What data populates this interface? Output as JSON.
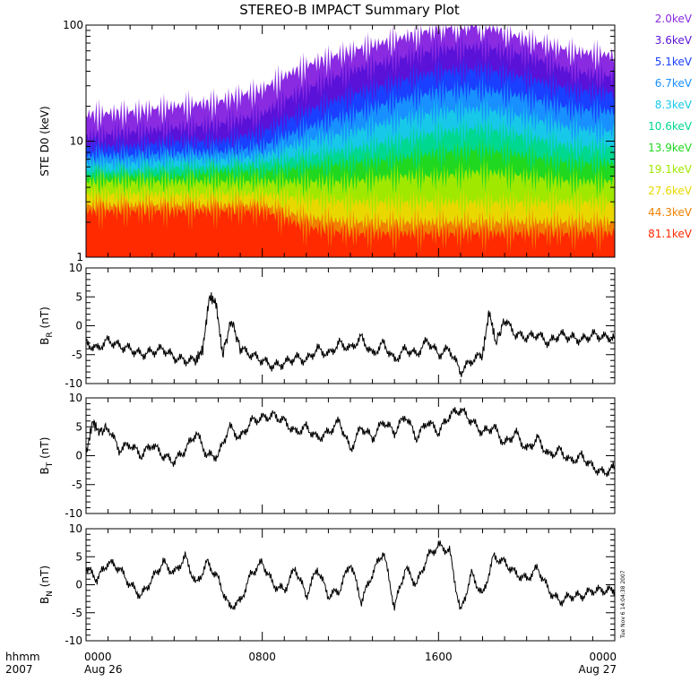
{
  "figure_title": "STEREO-B IMPACT Summary Plot",
  "legend": [
    {
      "label": "2.0keV",
      "color": "#8a2be2"
    },
    {
      "label": "3.6keV",
      "color": "#5a12d8"
    },
    {
      "label": "5.1keV",
      "color": "#1a3fff"
    },
    {
      "label": "6.7keV",
      "color": "#1890ff"
    },
    {
      "label": "8.3keV",
      "color": "#18c8e8"
    },
    {
      "label": "10.6keV",
      "color": "#00d890"
    },
    {
      "label": "13.9keV",
      "color": "#20d820"
    },
    {
      "label": "19.1keV",
      "color": "#a0e800"
    },
    {
      "label": "27.6keV",
      "color": "#e8d800"
    },
    {
      "label": "44.3keV",
      "color": "#f08000"
    },
    {
      "label": "81.1keV",
      "color": "#ff2a00"
    }
  ],
  "x_axis": {
    "corner_labels": [
      "hhmm",
      "2007"
    ],
    "ticks": [
      {
        "hhmm": "0000",
        "date": "Aug 26"
      },
      {
        "hhmm": "0800",
        "date": ""
      },
      {
        "hhmm": "1600",
        "date": ""
      },
      {
        "hhmm": "0000",
        "date": "Aug 27"
      }
    ]
  },
  "timestamp": "Tue Nov  6 14:04:38 2007",
  "chart_data": [
    {
      "type": "area",
      "panel": "STE D0 energy channels",
      "ylabel": "STE D0 (keV)",
      "scale": "log",
      "ylim": [
        1,
        100
      ],
      "yticks": [
        "1",
        "10",
        "100"
      ],
      "x_units": "hours since 0000 Aug 26",
      "x": [
        0,
        2,
        4,
        6,
        8,
        10,
        12,
        14,
        16,
        18,
        20,
        22,
        24
      ],
      "series": [
        {
          "name": "2.0keV",
          "values": [
            17,
            18,
            20,
            22,
            28,
            45,
            60,
            75,
            95,
            100,
            75,
            60,
            55
          ]
        },
        {
          "name": "3.6keV",
          "values": [
            11,
            12,
            13,
            14,
            17,
            28,
            40,
            50,
            62,
            65,
            55,
            40,
            36
          ]
        },
        {
          "name": "5.1keV",
          "values": [
            9,
            9,
            10,
            10,
            12,
            18,
            25,
            32,
            40,
            42,
            35,
            28,
            26
          ]
        },
        {
          "name": "6.7keV",
          "values": [
            7.5,
            7.5,
            8,
            8,
            9,
            13,
            17,
            22,
            27,
            28,
            24,
            19,
            18
          ]
        },
        {
          "name": "8.3keV",
          "values": [
            6.5,
            6.5,
            7,
            7,
            7.5,
            10,
            12,
            15,
            18,
            19,
            16,
            13,
            12
          ]
        },
        {
          "name": "10.6keV",
          "values": [
            5.5,
            5.5,
            6,
            6,
            6.5,
            7.5,
            8.5,
            10,
            12,
            13,
            11,
            9,
            9
          ]
        },
        {
          "name": "13.9keV",
          "values": [
            5,
            5,
            5,
            5.5,
            5.5,
            6,
            6.5,
            7,
            8,
            8.5,
            7.5,
            6.5,
            6.5
          ]
        },
        {
          "name": "19.1keV",
          "values": [
            4.5,
            4.5,
            4.5,
            4.5,
            4.5,
            4.5,
            4.5,
            5,
            5,
            5.5,
            5,
            4.5,
            4.5
          ]
        },
        {
          "name": "27.6keV",
          "values": [
            3.5,
            3.5,
            3.5,
            3.5,
            3.5,
            3.2,
            3,
            3,
            3,
            3,
            3,
            3,
            3
          ]
        },
        {
          "name": "44.3keV",
          "values": [
            2.8,
            2.8,
            2.8,
            2.8,
            2.8,
            2.2,
            2,
            2,
            2,
            2,
            2,
            2,
            2
          ]
        },
        {
          "name": "81.1keV",
          "values": [
            2.5,
            2.5,
            2.5,
            2.5,
            2.5,
            1.8,
            1.6,
            1.6,
            1.6,
            1.6,
            1.6,
            1.6,
            1.6
          ]
        }
      ]
    },
    {
      "type": "line",
      "panel": "BR",
      "ylabel_main": "B",
      "ylabel_sub": "R",
      "ylabel_unit": "(nT)",
      "ylim": [
        -10,
        10
      ],
      "yticks": [
        "-10",
        "-5",
        "0",
        "5",
        "10"
      ],
      "x_units": "hours since 0000 Aug 26",
      "x": [
        0,
        0.5,
        1,
        1.5,
        2,
        2.5,
        3,
        3.5,
        4,
        4.5,
        5,
        5.3,
        5.6,
        5.9,
        6.2,
        6.6,
        7,
        7.5,
        8,
        8.5,
        9,
        9.5,
        10,
        10.5,
        11,
        11.5,
        12,
        12.5,
        13,
        13.5,
        14,
        14.5,
        15,
        15.5,
        16,
        16.5,
        17,
        17.5,
        18,
        18.3,
        18.6,
        19,
        19.5,
        20,
        20.5,
        21,
        21.5,
        22,
        22.5,
        23,
        23.5,
        24
      ],
      "values": [
        -3,
        -4,
        -2.5,
        -3.5,
        -4,
        -5,
        -4.5,
        -4,
        -5.5,
        -6,
        -6,
        -4,
        5,
        4,
        -5,
        1,
        -4,
        -5,
        -6,
        -7,
        -6.5,
        -5.5,
        -6,
        -4,
        -5,
        -3,
        -4,
        -2,
        -5,
        -3,
        -6,
        -4,
        -5,
        -2.5,
        -5,
        -4,
        -8,
        -6,
        -5,
        2.5,
        -3,
        1,
        -1.5,
        -2,
        -1.5,
        -3,
        -1.5,
        -2,
        -2.5,
        -1.5,
        -2,
        -2
      ]
    },
    {
      "type": "line",
      "panel": "BT",
      "ylabel_main": "B",
      "ylabel_sub": "T",
      "ylabel_unit": "(nT)",
      "ylim": [
        -10,
        10
      ],
      "yticks": [
        "-10",
        "-5",
        "0",
        "5",
        "10"
      ],
      "x_units": "hours since 0000 Aug 26",
      "x": [
        0,
        0.3,
        0.6,
        1,
        1.5,
        2,
        2.5,
        3,
        3.5,
        4,
        4.5,
        5,
        5.5,
        6,
        6.5,
        7,
        7.5,
        8,
        8.5,
        9,
        9.5,
        10,
        10.5,
        11,
        11.5,
        12,
        12.5,
        13,
        13.5,
        14,
        14.5,
        15,
        15.5,
        16,
        16.5,
        17,
        17.5,
        18,
        18.5,
        19,
        19.5,
        20,
        20.5,
        21,
        21.5,
        22,
        22.5,
        23,
        23.5,
        24
      ],
      "values": [
        0,
        6,
        4,
        5,
        1,
        2,
        0,
        2,
        0,
        -1,
        1,
        4,
        0,
        0,
        5,
        3,
        6,
        6.5,
        7,
        6,
        4,
        5,
        3,
        4,
        6,
        1,
        5,
        3,
        6,
        4,
        7,
        3,
        6,
        4,
        7,
        8,
        6,
        4,
        5,
        2,
        4,
        1,
        3,
        0,
        1,
        -1,
        0,
        -2,
        -3,
        -2
      ]
    },
    {
      "type": "line",
      "panel": "BN",
      "ylabel_main": "B",
      "ylabel_sub": "N",
      "ylabel_unit": "(nT)",
      "ylim": [
        -10,
        10
      ],
      "yticks": [
        "-10",
        "-5",
        "0",
        "5",
        "10"
      ],
      "x_units": "hours since 0000 Aug 26",
      "x": [
        0,
        0.5,
        1,
        1.5,
        2,
        2.5,
        3,
        3.5,
        4,
        4.5,
        5,
        5.5,
        6,
        6.5,
        7,
        7.5,
        8,
        8.5,
        9,
        9.5,
        10,
        10.5,
        11,
        11.5,
        12,
        12.5,
        13,
        13.5,
        14,
        14.5,
        15,
        15.5,
        16,
        16.5,
        17,
        17.5,
        18,
        18.5,
        19,
        19.5,
        20,
        20.5,
        21,
        21.5,
        22,
        22.5,
        23,
        23.5,
        24
      ],
      "values": [
        3,
        1,
        4,
        3,
        0,
        -2,
        1,
        4,
        2,
        5,
        0,
        4,
        1,
        -4,
        -3,
        2,
        4,
        0,
        -1,
        3,
        -2,
        3,
        -2,
        -1,
        4,
        -3,
        2,
        6,
        -4,
        3,
        0,
        5,
        7,
        6,
        -5,
        2,
        -2,
        5,
        4,
        2,
        1,
        3,
        -1,
        -3,
        -2,
        -2,
        -1,
        -1,
        -1
      ]
    }
  ]
}
